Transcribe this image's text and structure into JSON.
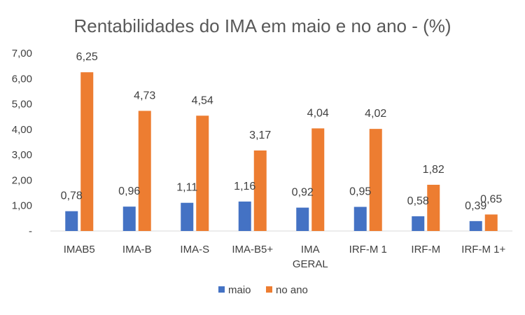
{
  "chart_data": {
    "type": "bar",
    "title": "Rentabilidades do IMA em maio e no ano - (%)",
    "categories": [
      [
        "IMAB5"
      ],
      [
        "IMA-B"
      ],
      [
        "IMA-S"
      ],
      [
        "IMA-B5+"
      ],
      [
        "IMA",
        "GERAL"
      ],
      [
        "IRF-M 1"
      ],
      [
        "IRF-M"
      ],
      [
        "IRF-M 1+"
      ]
    ],
    "series": [
      {
        "name": "maio",
        "color": "#4472C4",
        "values": [
          0.78,
          0.96,
          1.11,
          1.16,
          0.92,
          0.95,
          0.58,
          0.39
        ],
        "labels": [
          "0,78",
          "0,96",
          "1,11",
          "1,16",
          "0,92",
          "0,95",
          "0,58",
          "0,39"
        ]
      },
      {
        "name": "no ano",
        "color": "#ED7D31",
        "values": [
          6.25,
          4.73,
          4.54,
          3.17,
          4.04,
          4.02,
          1.82,
          0.65
        ],
        "labels": [
          "6,25",
          "4,73",
          "4,54",
          "3,17",
          "4,04",
          "4,02",
          "1,82",
          "0,65"
        ]
      }
    ],
    "ylim": [
      0,
      7
    ],
    "y_ticks": [
      0,
      1,
      2,
      3,
      4,
      5,
      6,
      7
    ],
    "y_tick_labels": [
      "-",
      "1,00",
      "2,00",
      "3,00",
      "4,00",
      "5,00",
      "6,00",
      "7,00"
    ],
    "grid": false,
    "legend": "bottom-center"
  }
}
